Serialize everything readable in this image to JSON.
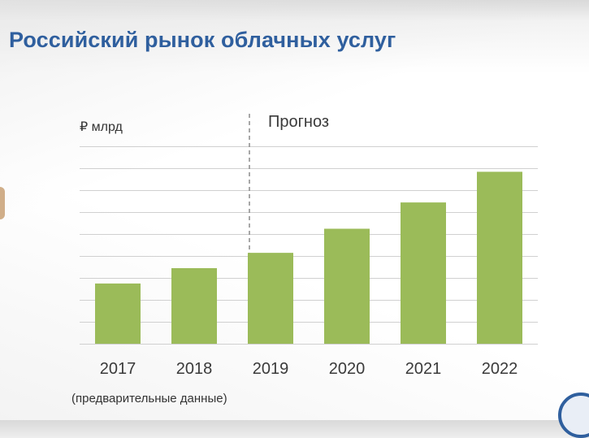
{
  "title": "Российский рынок облачных услуг",
  "unit_label": "₽ млрд",
  "forecast_label": "Прогноз",
  "footnote": "(предварительные данные)",
  "colors": {
    "title": "#2f5f9e",
    "bar": "#9bbb59",
    "grid": "#d0d0d0",
    "divider": "#8c8c8c"
  },
  "chart_data": {
    "type": "bar",
    "categories": [
      "2017",
      "2018",
      "2019",
      "2020",
      "2021",
      "2022"
    ],
    "values": [
      27.5,
      34.5,
      41.5,
      52.5,
      64.5,
      78.5
    ],
    "forecast_start": "2019",
    "ylim": [
      0,
      92
    ],
    "gridline_step": 10,
    "grid": true,
    "ytick_labels_shown": false,
    "title": "Российский рынок облачных услуг",
    "ylabel": "₽ млрд",
    "xlabel": ""
  }
}
